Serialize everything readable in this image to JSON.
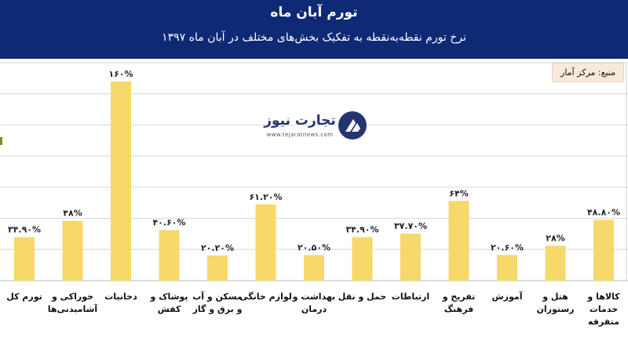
{
  "header": {
    "title": "تورم آبان ماه",
    "subtitle": "نرخ تورم نقطه‌به‌نقطه به تفکیک بخش‌های مختلف در آبان ماه ۱۳۹۷"
  },
  "source_label": "منبع: مرکز آمار",
  "logo": {
    "name": "تجارت نیوز",
    "url": "www.tejaratnews.com",
    "icon": "tejarat-news-logo"
  },
  "colors": {
    "header_bg": "#0e2a75",
    "bar": "#f7d86a",
    "grid": "#d6d6d6"
  },
  "chart_data": {
    "type": "bar",
    "categories": [
      [
        "تورم کل"
      ],
      [
        "خوراکی و",
        "آشامیدنی‌ها"
      ],
      [
        "دخانیات"
      ],
      [
        "پوشاک و",
        "کفش"
      ],
      [
        "مسکن و آب",
        "و برق و گاز"
      ],
      [
        "لوازم خانگی"
      ],
      [
        "بهداشت و",
        "درمان"
      ],
      [
        "حمل و نقل"
      ],
      [
        "ارتباطات"
      ],
      [
        "تفریح و",
        "فرهنگ"
      ],
      [
        "آموزش"
      ],
      [
        "هتل و",
        "رستوران"
      ],
      [
        "کالاها و",
        "خدمات",
        "متفرقه"
      ]
    ],
    "values": [
      34.9,
      48,
      160,
      40.6,
      20.2,
      61.2,
      20.5,
      34.9,
      37.7,
      64,
      20.6,
      28,
      48.8
    ],
    "value_labels": [
      "۳۴.۹۰%",
      "۴۸%",
      "۱۶۰%",
      "۴۰.۶۰%",
      "۲۰.۲۰%",
      "۶۱.۲۰%",
      "۲۰.۵۰%",
      "۳۴.۹۰%",
      "۳۷.۷۰%",
      "۶۴%",
      "۲۰.۶۰%",
      "۲۸%",
      "۴۸.۸۰%"
    ],
    "ylim": [
      0,
      175
    ],
    "grid": true,
    "gridlines": [
      0,
      25,
      50,
      75,
      100,
      125,
      150,
      175
    ]
  }
}
